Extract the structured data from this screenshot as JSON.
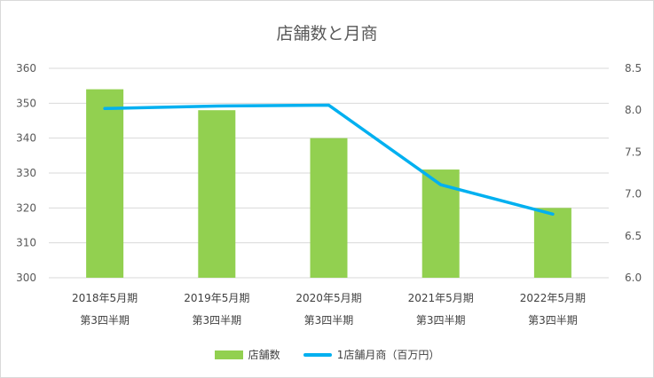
{
  "chart_data": {
    "type": "bar",
    "title": "店舗数と月商",
    "categories": [
      [
        "2018年5月期",
        "第3四半期"
      ],
      [
        "2019年5月期",
        "第3四半期"
      ],
      [
        "2020年5月期",
        "第3四半期"
      ],
      [
        "2021年5月期",
        "第3四半期"
      ],
      [
        "2022年5月期",
        "第3四半期"
      ]
    ],
    "series": [
      {
        "name": "店舗数",
        "type": "bar",
        "axis": "left",
        "color": "#92d050",
        "values": [
          354,
          348,
          340,
          331,
          320
        ]
      },
      {
        "name": "1店舗月商（百万円）",
        "type": "line",
        "axis": "right",
        "color": "#00b0f0",
        "values": [
          8.02,
          8.05,
          8.06,
          7.11,
          6.76
        ]
      }
    ],
    "y_left": {
      "lim": [
        300,
        360
      ],
      "ticks": [
        "300",
        "310",
        "320",
        "330",
        "340",
        "350",
        "360"
      ]
    },
    "y_right": {
      "lim": [
        6.0,
        8.5
      ],
      "ticks": [
        "6.0",
        "6.5",
        "7.0",
        "7.5",
        "8.0",
        "8.5"
      ]
    },
    "grid": true,
    "legend_position": "bottom"
  }
}
